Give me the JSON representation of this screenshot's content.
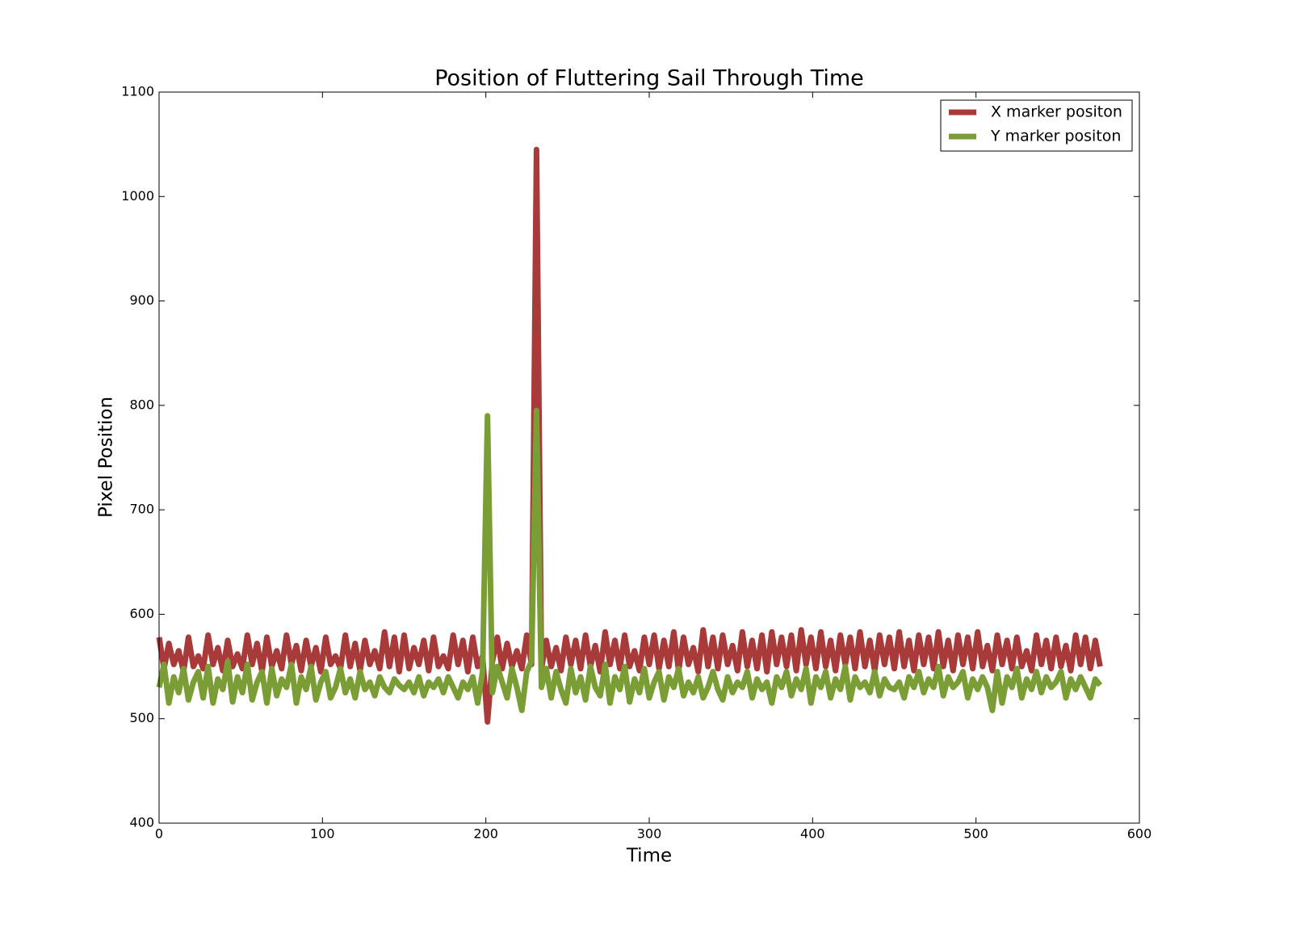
{
  "chart_data": {
    "type": "line",
    "title": "Position of Fluttering Sail Through Time",
    "x_label": "Time",
    "y_label": "Pixel Position",
    "xlim": [
      0,
      600
    ],
    "xticks": [
      0,
      100,
      200,
      300,
      400,
      500,
      600
    ],
    "ylim": [
      400,
      1100
    ],
    "yticks": [
      400,
      500,
      600,
      700,
      800,
      900,
      1000,
      1100
    ],
    "legend": "upper right",
    "x": [
      0,
      3,
      6,
      9,
      12,
      15,
      18,
      21,
      24,
      27,
      30,
      33,
      36,
      39,
      42,
      45,
      48,
      51,
      54,
      57,
      60,
      63,
      66,
      69,
      72,
      75,
      78,
      81,
      84,
      87,
      90,
      93,
      96,
      99,
      102,
      105,
      108,
      111,
      114,
      117,
      120,
      123,
      126,
      129,
      132,
      135,
      138,
      141,
      144,
      147,
      150,
      153,
      156,
      159,
      162,
      165,
      168,
      171,
      174,
      177,
      180,
      183,
      186,
      189,
      192,
      195,
      198,
      201,
      204,
      207,
      210,
      213,
      216,
      219,
      222,
      225,
      228,
      231,
      234,
      237,
      240,
      243,
      246,
      249,
      252,
      255,
      258,
      261,
      264,
      267,
      270,
      273,
      276,
      279,
      282,
      285,
      288,
      291,
      294,
      297,
      300,
      303,
      306,
      309,
      312,
      315,
      318,
      321,
      324,
      327,
      330,
      333,
      336,
      339,
      342,
      345,
      348,
      351,
      354,
      357,
      360,
      363,
      366,
      369,
      372,
      375,
      378,
      381,
      384,
      387,
      390,
      393,
      396,
      399,
      402,
      405,
      408,
      411,
      414,
      417,
      420,
      423,
      426,
      429,
      432,
      435,
      438,
      441,
      444,
      447,
      450,
      453,
      456,
      459,
      462,
      465,
      468,
      471,
      474,
      477,
      480,
      483,
      486,
      489,
      492,
      495,
      498,
      501,
      504,
      507,
      510,
      513,
      516,
      519,
      522,
      525,
      528,
      531,
      534,
      537,
      540,
      543,
      546,
      549,
      552,
      555,
      558,
      561,
      564,
      567,
      570,
      573,
      576
    ],
    "series": [
      {
        "name": "X marker positon",
        "color": "#a83a3a",
        "values": [
          578,
          548,
          572,
          552,
          565,
          545,
          578,
          550,
          560,
          548,
          580,
          552,
          568,
          546,
          575,
          550,
          562,
          548,
          580,
          552,
          572,
          545,
          578,
          550,
          565,
          548,
          580,
          552,
          570,
          546,
          575,
          550,
          568,
          545,
          578,
          552,
          560,
          548,
          580,
          550,
          572,
          546,
          575,
          552,
          565,
          548,
          583,
          550,
          578,
          545,
          580,
          548,
          568,
          552,
          575,
          546,
          578,
          550,
          560,
          548,
          580,
          552,
          575,
          545,
          578,
          550,
          560,
          497,
          555,
          578,
          548,
          572,
          550,
          565,
          548,
          580,
          552,
          1045,
          548,
          575,
          550,
          568,
          546,
          578,
          552,
          575,
          548,
          580,
          550,
          570,
          545,
          583,
          552,
          575,
          548,
          580,
          550,
          565,
          546,
          578,
          552,
          580,
          548,
          575,
          550,
          583,
          546,
          578,
          552,
          568,
          545,
          585,
          550,
          578,
          548,
          580,
          552,
          570,
          546,
          583,
          550,
          575,
          548,
          580,
          545,
          583,
          552,
          578,
          550,
          580,
          546,
          585,
          552,
          578,
          548,
          583,
          550,
          575,
          546,
          580,
          552,
          578,
          548,
          583,
          550,
          575,
          546,
          580,
          552,
          578,
          548,
          583,
          550,
          575,
          546,
          580,
          552,
          578,
          548,
          583,
          550,
          575,
          546,
          580,
          552,
          578,
          548,
          583,
          550,
          570,
          546,
          580,
          552,
          575,
          548,
          578,
          550,
          565,
          546,
          580,
          552,
          575,
          548,
          578,
          550,
          570,
          546,
          580,
          552,
          578,
          548,
          575,
          550
        ]
      },
      {
        "name": "Y marker positon",
        "color": "#7a9e35",
        "values": [
          530,
          552,
          515,
          540,
          525,
          548,
          518,
          535,
          545,
          520,
          550,
          515,
          538,
          528,
          555,
          516,
          540,
          525,
          552,
          518,
          535,
          545,
          515,
          548,
          522,
          538,
          530,
          552,
          515,
          540,
          528,
          550,
          518,
          535,
          545,
          520,
          530,
          548,
          525,
          538,
          520,
          545,
          528,
          535,
          522,
          540,
          530,
          525,
          538,
          532,
          528,
          535,
          525,
          540,
          522,
          535,
          530,
          538,
          525,
          540,
          530,
          520,
          535,
          528,
          540,
          515,
          545,
          790,
          525,
          550,
          535,
          520,
          548,
          530,
          508,
          545,
          555,
          795,
          530,
          548,
          520,
          545,
          528,
          515,
          548,
          525,
          540,
          518,
          550,
          530,
          522,
          552,
          515,
          540,
          528,
          550,
          516,
          538,
          525,
          548,
          520,
          535,
          545,
          518,
          540,
          530,
          548,
          522,
          535,
          525,
          540,
          520,
          530,
          545,
          528,
          518,
          540,
          525,
          535,
          530,
          545,
          520,
          538,
          528,
          535,
          515,
          540,
          530,
          545,
          522,
          538,
          528,
          548,
          515,
          540,
          530,
          545,
          520,
          538,
          528,
          550,
          518,
          540,
          530,
          535,
          525,
          545,
          522,
          538,
          530,
          528,
          535,
          520,
          540,
          530,
          545,
          525,
          538,
          530,
          550,
          522,
          540,
          530,
          535,
          545,
          520,
          538,
          528,
          540,
          530,
          508,
          545,
          515,
          540,
          530,
          548,
          520,
          538,
          528,
          545,
          525,
          540,
          530,
          535,
          545,
          520,
          538,
          528,
          540,
          530,
          520,
          538,
          532
        ]
      }
    ]
  }
}
